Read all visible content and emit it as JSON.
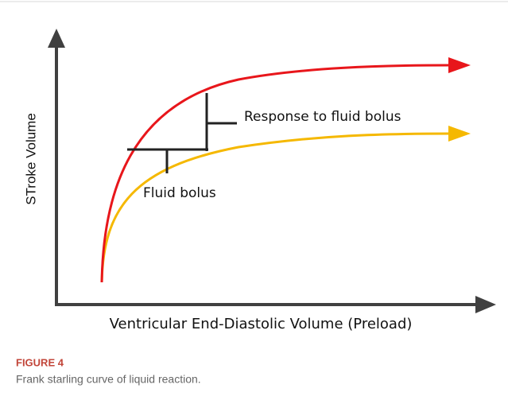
{
  "figure": {
    "y_axis_label": "STroke Volume",
    "x_axis_label": "Ventricular End-Diastolic Volume (Preload)",
    "annotations": [
      "Response to fluid bolus",
      "Fluid bolus"
    ],
    "caption_label": "FIGURE 4",
    "caption": "Frank starling curve of liquid reaction."
  }
}
